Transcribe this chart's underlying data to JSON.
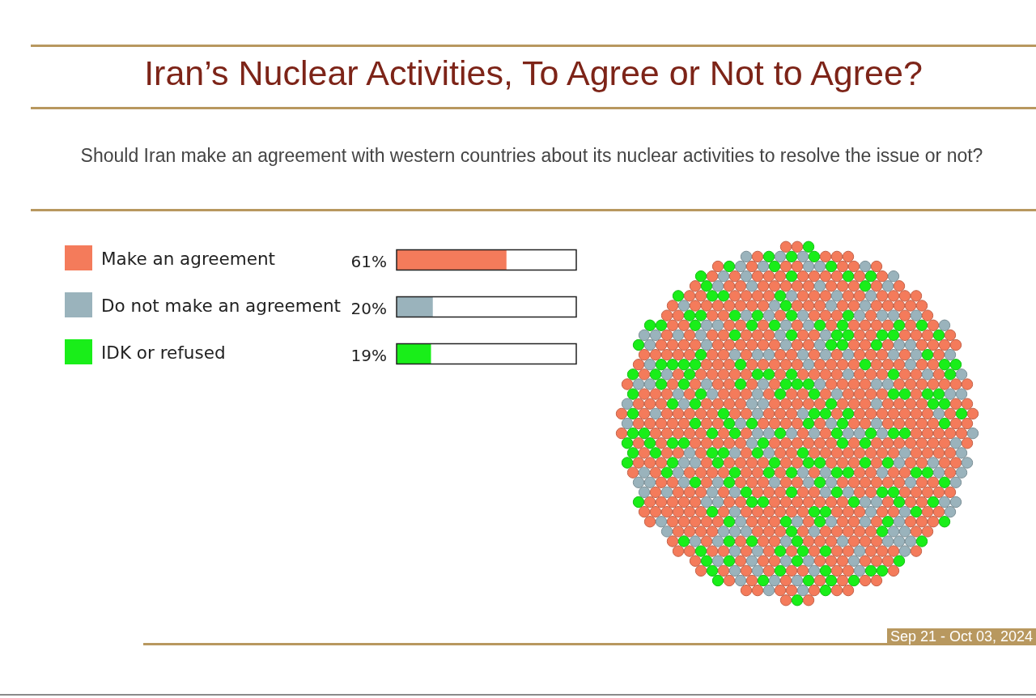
{
  "chart_data": {
    "type": "bar",
    "orientation": "horizontal",
    "title": "Iran’s Nuclear Activities, To Agree or Not to Agree?",
    "subtitle": "Should Iran make an agreement with western countries about its nuclear activities to resolve the issue or not?",
    "categories": [
      "Make an agreement",
      "Do not make an agreement",
      "IDK or refused"
    ],
    "values": [
      61,
      20,
      19
    ],
    "colors": [
      "#f47b5b",
      "#9ab3bc",
      "#19ee19"
    ],
    "value_labels": [
      "61%",
      "20%",
      "19%"
    ],
    "xlim": [
      0,
      100
    ],
    "tick_labels": "y",
    "annotations": [
      "Sep 21 - Oct 03, 2024"
    ]
  }
}
